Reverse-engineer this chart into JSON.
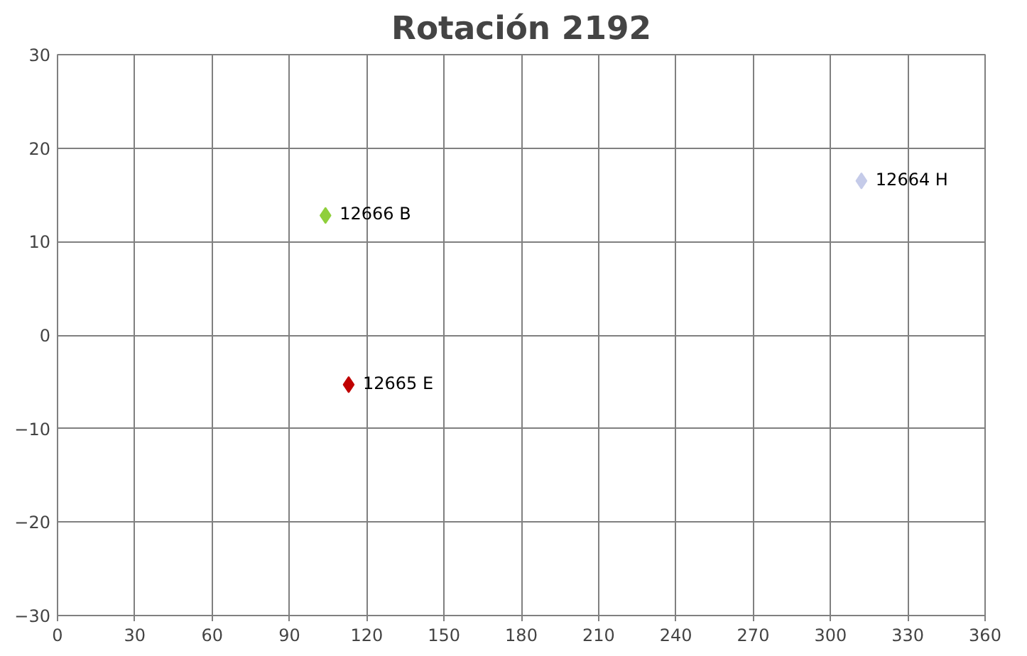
{
  "chart_data": {
    "type": "scatter",
    "title": "Rotación 2192",
    "marker": "diamond",
    "grid": true,
    "xlim": [
      0,
      360
    ],
    "xticks": [
      0,
      30,
      60,
      90,
      120,
      150,
      180,
      210,
      240,
      270,
      300,
      330,
      360
    ],
    "ylim": [
      -30,
      30
    ],
    "yticks": [
      -30,
      -20,
      -10,
      0,
      10,
      20,
      30
    ],
    "series": [
      {
        "name": "12666 B",
        "color": "#8fcf3c",
        "x": [
          104
        ],
        "values": [
          12.8
        ]
      },
      {
        "name": "12665 E",
        "color": "#c00000",
        "x": [
          113
        ],
        "values": [
          -5.3
        ]
      },
      {
        "name": "12664 H",
        "color": "#c5cbe9",
        "x": [
          312
        ],
        "values": [
          16.5
        ]
      }
    ]
  }
}
